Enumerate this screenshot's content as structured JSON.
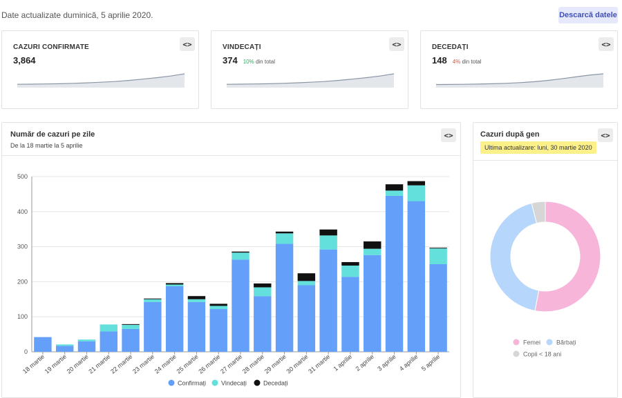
{
  "header": {
    "update_text": "Date actualizate duminică, 5 aprilie 2020.",
    "download_label": "Descarcă datele"
  },
  "code_icon": "<>",
  "stats": [
    {
      "title": "CAZURI CONFIRMATE",
      "value": "3,864",
      "pct": "",
      "pct_label": "",
      "trend": [
        5,
        6,
        8,
        10,
        14,
        18,
        24,
        30,
        40,
        52,
        65,
        80,
        100
      ]
    },
    {
      "title": "VINDECAȚI",
      "value": "374",
      "pct": "10%",
      "pct_label": "din total",
      "trend": [
        5,
        6,
        8,
        10,
        14,
        18,
        24,
        30,
        40,
        52,
        65,
        80,
        100
      ]
    },
    {
      "title": "DECEDAȚI",
      "value": "148",
      "pct": "4%",
      "pct_label": "din total",
      "trend": [
        3,
        4,
        5,
        7,
        10,
        14,
        20,
        28,
        40,
        55,
        72,
        88,
        100
      ]
    }
  ],
  "daily_panel": {
    "title": "Număr de cazuri pe zile",
    "subtitle": "De la 18 martie la 5 aprilie"
  },
  "gender_panel": {
    "title": "Cazuri după gen",
    "note": "Ultima actualizare: luni, 30 martie 2020"
  },
  "chart_data": [
    {
      "type": "bar",
      "stacked": true,
      "title": "Număr de cazuri pe zile",
      "subtitle": "De la 18 martie la 5 aprilie",
      "categories": [
        "18 martie",
        "19 martie",
        "20 martie",
        "21 martie",
        "22 martie",
        "23 martie",
        "24 martie",
        "25 martie",
        "26 martie",
        "27 martie",
        "28 martie",
        "29 martie",
        "30 martie",
        "31 martie",
        "1 aprilie",
        "2 aprilie",
        "3 aprilie",
        "4 aprilie",
        "5 aprilie"
      ],
      "series": [
        {
          "name": "Confirmați",
          "color": "#64a0fa",
          "values": [
            42,
            17,
            30,
            58,
            65,
            142,
            187,
            142,
            122,
            263,
            159,
            308,
            190,
            292,
            214,
            276,
            445,
            430,
            250
          ]
        },
        {
          "name": "Vindecați",
          "color": "#63e0dc",
          "values": [
            0,
            4,
            5,
            20,
            12,
            8,
            5,
            8,
            9,
            20,
            25,
            30,
            12,
            40,
            32,
            18,
            15,
            45,
            45
          ]
        },
        {
          "name": "Decedați",
          "color": "#111111",
          "values": [
            0,
            0,
            0,
            0,
            2,
            2,
            4,
            9,
            6,
            3,
            11,
            5,
            22,
            17,
            10,
            21,
            18,
            12,
            2
          ]
        }
      ],
      "ylim": [
        0,
        500
      ],
      "yticks": [
        0,
        100,
        200,
        300,
        400,
        500
      ],
      "grid": true,
      "legend": "bottom"
    },
    {
      "type": "pie",
      "donut": true,
      "title": "Cazuri după gen",
      "labels": [
        "Femei",
        "Bărbați",
        "Copii < 18 ani"
      ],
      "values": [
        53,
        43,
        4
      ],
      "colors": [
        "#f7b6d9",
        "#b6d7fb",
        "#d6d6d6"
      ],
      "legend": "bottom"
    }
  ]
}
